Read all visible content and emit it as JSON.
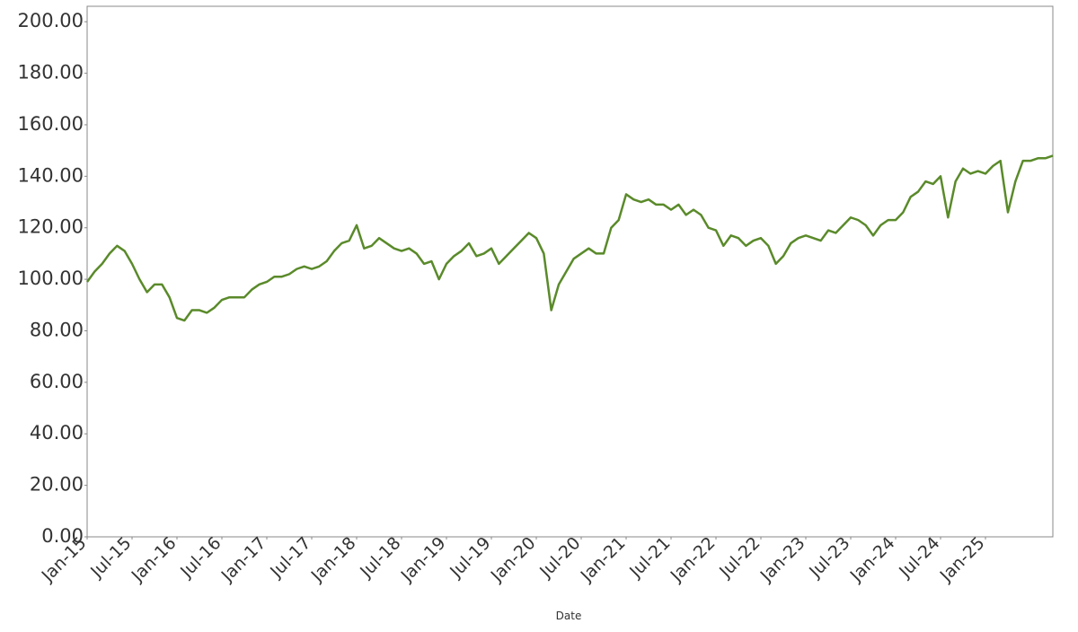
{
  "chart_data": {
    "type": "line",
    "x_label": "Date",
    "color": "#5a8a2a",
    "x": [
      "Jan-15",
      "Feb-15",
      "Mar-15",
      "Apr-15",
      "May-15",
      "Jun-15",
      "Jul-15",
      "Aug-15",
      "Sep-15",
      "Oct-15",
      "Nov-15",
      "Dec-15",
      "Jan-16",
      "Feb-16",
      "Mar-16",
      "Apr-16",
      "May-16",
      "Jun-16",
      "Jul-16",
      "Aug-16",
      "Sep-16",
      "Oct-16",
      "Nov-16",
      "Dec-16",
      "Jan-17",
      "Feb-17",
      "Mar-17",
      "Apr-17",
      "May-17",
      "Jun-17",
      "Jul-17",
      "Aug-17",
      "Sep-17",
      "Oct-17",
      "Nov-17",
      "Dec-17",
      "Jan-18",
      "Feb-18",
      "Mar-18",
      "Apr-18",
      "May-18",
      "Jun-18",
      "Jul-18",
      "Aug-18",
      "Sep-18",
      "Oct-18",
      "Nov-18",
      "Dec-18",
      "Jan-19",
      "Feb-19",
      "Mar-19",
      "Apr-19",
      "May-19",
      "Jun-19",
      "Jul-19",
      "Aug-19",
      "Sep-19",
      "Oct-19",
      "Nov-19",
      "Dec-19",
      "Jan-20",
      "Feb-20",
      "Mar-20",
      "Apr-20",
      "May-20",
      "Jun-20",
      "Jul-20",
      "Aug-20",
      "Sep-20",
      "Oct-20",
      "Nov-20",
      "Dec-20",
      "Jan-21",
      "Feb-21",
      "Mar-21",
      "Apr-21",
      "May-21",
      "Jun-21",
      "Jul-21",
      "Aug-21",
      "Sep-21",
      "Oct-21",
      "Nov-21",
      "Dec-21",
      "Jan-22",
      "Feb-22",
      "Mar-22",
      "Apr-22",
      "May-22",
      "Jun-22",
      "Jul-22",
      "Aug-22",
      "Sep-22",
      "Oct-22",
      "Nov-22",
      "Dec-22",
      "Jan-23",
      "Feb-23",
      "Mar-23",
      "Apr-23",
      "May-23",
      "Jun-23",
      "Jul-23",
      "Aug-23",
      "Sep-23",
      "Oct-23",
      "Nov-23",
      "Dec-23",
      "Jan-24",
      "Feb-24",
      "Mar-24",
      "Apr-24",
      "May-24",
      "Jun-24",
      "Jul-24",
      "Aug-24",
      "Sep-24",
      "Oct-24",
      "Nov-24",
      "Dec-24",
      "Jan-25",
      "Feb-25",
      "Mar-25",
      "Apr-25",
      "May-25",
      "Jun-25",
      "Jul-25",
      "Aug-25",
      "Sep-25",
      "Oct-25"
    ],
    "values": [
      99,
      103,
      106,
      110,
      113,
      111,
      106,
      100,
      95,
      98,
      98,
      93,
      85,
      84,
      88,
      88,
      87,
      89,
      92,
      93,
      93,
      93,
      96,
      98,
      99,
      101,
      101,
      102,
      104,
      105,
      104,
      105,
      107,
      111,
      114,
      115,
      121,
      112,
      113,
      116,
      114,
      112,
      111,
      112,
      110,
      106,
      107,
      100,
      106,
      109,
      111,
      114,
      109,
      110,
      112,
      106,
      109,
      112,
      115,
      118,
      116,
      110,
      88,
      98,
      103,
      108,
      110,
      112,
      110,
      110,
      120,
      123,
      133,
      131,
      130,
      131,
      129,
      129,
      127,
      129,
      125,
      127,
      125,
      120,
      119,
      113,
      117,
      116,
      113,
      115,
      116,
      113,
      106,
      109,
      114,
      116,
      117,
      116,
      115,
      119,
      118,
      121,
      124,
      123,
      121,
      117,
      121,
      123,
      123,
      126,
      132,
      134,
      138,
      137,
      140,
      124,
      138,
      143,
      141,
      142,
      141,
      144,
      146,
      126,
      138,
      146,
      146,
      147,
      147,
      148
    ],
    "xlim": [
      "Jan-15",
      "Oct-25"
    ],
    "xticks": [
      "Jan-15",
      "Jul-15",
      "Jan-16",
      "Jul-16",
      "Jan-17",
      "Jul-17",
      "Jan-18",
      "Jul-18",
      "Jan-19",
      "Jul-19",
      "Jan-20",
      "Jul-20",
      "Jan-21",
      "Jul-21",
      "Jan-22",
      "Jul-22",
      "Jan-23",
      "Jul-23",
      "Jan-24",
      "Jul-24",
      "Jan-25"
    ],
    "ylim": [
      0,
      206
    ],
    "yticks": [
      {
        "value": 0,
        "label": "0.00"
      },
      {
        "value": 20,
        "label": "20.00"
      },
      {
        "value": 40,
        "label": "40.00"
      },
      {
        "value": 60,
        "label": "60.00"
      },
      {
        "value": 80,
        "label": "80.00"
      },
      {
        "value": 100,
        "label": "100.00"
      },
      {
        "value": 120,
        "label": "120.00"
      },
      {
        "value": 140,
        "label": "140.00"
      },
      {
        "value": 160,
        "label": "160.00"
      },
      {
        "value": 180,
        "label": "180.00"
      },
      {
        "value": 200,
        "label": "200.00"
      }
    ]
  }
}
